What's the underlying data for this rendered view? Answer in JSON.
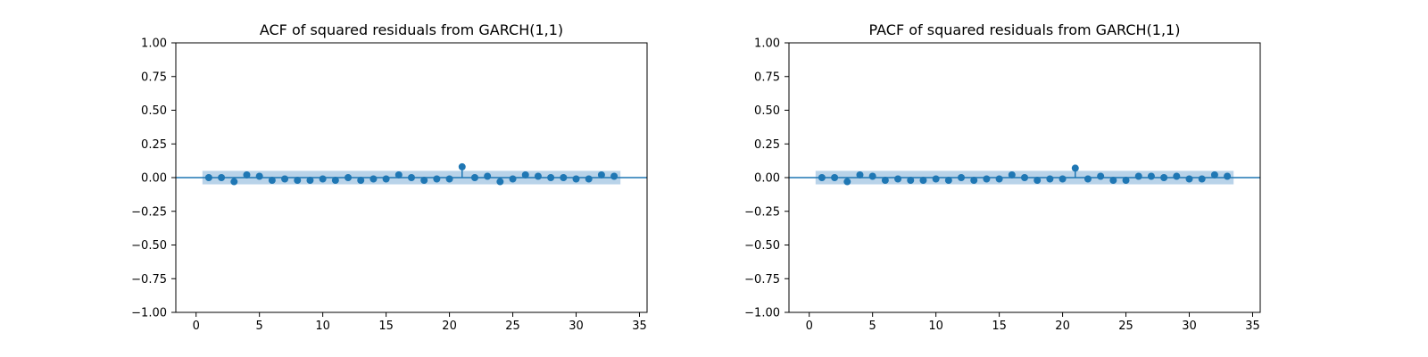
{
  "chart_data": [
    {
      "type": "stem",
      "title": "ACF of squared residuals from GARCH(1,1)",
      "xlabel": "",
      "ylabel": "",
      "xlim": [
        -1.6,
        35.6
      ],
      "ylim": [
        -1.0,
        1.0
      ],
      "xticks": [
        0,
        5,
        10,
        15,
        20,
        25,
        30,
        35
      ],
      "yticks": [
        -1.0,
        -0.75,
        -0.5,
        -0.25,
        0.0,
        0.25,
        0.5,
        0.75,
        1.0
      ],
      "ytick_labels": [
        "−1.00",
        "−0.75",
        "−0.50",
        "−0.25",
        "0.00",
        "0.25",
        "0.50",
        "0.75",
        "1.00"
      ],
      "grid": false,
      "confidence_band": [
        -0.05,
        0.05
      ],
      "lags": [
        1,
        2,
        3,
        4,
        5,
        6,
        7,
        8,
        9,
        10,
        11,
        12,
        13,
        14,
        15,
        16,
        17,
        18,
        19,
        20,
        21,
        22,
        23,
        24,
        25,
        26,
        27,
        28,
        29,
        30,
        31,
        32,
        33
      ],
      "values": [
        0.0,
        0.0,
        -0.03,
        0.02,
        0.01,
        -0.02,
        -0.01,
        -0.02,
        -0.02,
        -0.01,
        -0.02,
        0.0,
        -0.02,
        -0.01,
        -0.01,
        0.02,
        0.0,
        -0.02,
        -0.01,
        -0.01,
        0.08,
        0.0,
        0.01,
        -0.03,
        -0.01,
        0.02,
        0.01,
        0.0,
        0.0,
        -0.01,
        -0.01,
        0.02,
        0.01
      ]
    },
    {
      "type": "stem",
      "title": "PACF of squared residuals from GARCH(1,1)",
      "xlabel": "",
      "ylabel": "",
      "xlim": [
        -1.6,
        35.6
      ],
      "ylim": [
        -1.0,
        1.0
      ],
      "xticks": [
        0,
        5,
        10,
        15,
        20,
        25,
        30,
        35
      ],
      "yticks": [
        -1.0,
        -0.75,
        -0.5,
        -0.25,
        0.0,
        0.25,
        0.5,
        0.75,
        1.0
      ],
      "ytick_labels": [
        "−1.00",
        "−0.75",
        "−0.50",
        "−0.25",
        "0.00",
        "0.25",
        "0.50",
        "0.75",
        "1.00"
      ],
      "grid": false,
      "confidence_band": [
        -0.05,
        0.05
      ],
      "lags": [
        1,
        2,
        3,
        4,
        5,
        6,
        7,
        8,
        9,
        10,
        11,
        12,
        13,
        14,
        15,
        16,
        17,
        18,
        19,
        20,
        21,
        22,
        23,
        24,
        25,
        26,
        27,
        28,
        29,
        30,
        31,
        32,
        33
      ],
      "values": [
        0.0,
        0.0,
        -0.03,
        0.02,
        0.01,
        -0.02,
        -0.01,
        -0.02,
        -0.02,
        -0.01,
        -0.02,
        0.0,
        -0.02,
        -0.01,
        -0.01,
        0.02,
        0.0,
        -0.02,
        -0.01,
        -0.01,
        0.07,
        -0.01,
        0.01,
        -0.02,
        -0.02,
        0.01,
        0.01,
        0.0,
        0.01,
        -0.01,
        -0.01,
        0.02,
        0.01
      ]
    }
  ],
  "colors": {
    "marker": "#1f77b4",
    "band": "#b9d3e9",
    "zero_line": "#1f77b4",
    "axes": "#000000"
  }
}
